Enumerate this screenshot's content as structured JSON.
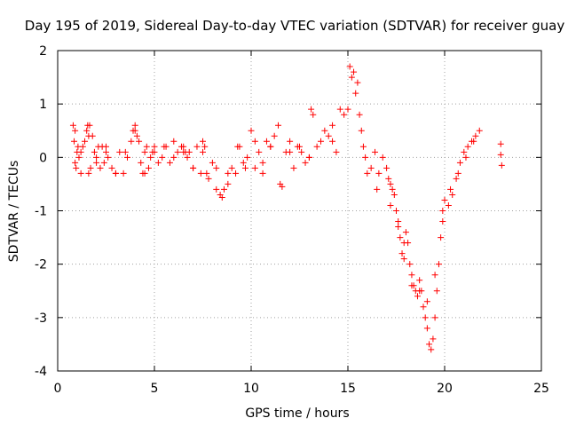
{
  "chart_data": {
    "type": "scatter",
    "title": "Day 195 of 2019, Sidereal Day-to-day VTEC variation (SDTVAR) for receiver guay",
    "xlabel": "GPS time / hours",
    "ylabel": "SDTVAR / TECUs",
    "xlim": [
      0,
      25
    ],
    "ylim": [
      -4,
      2
    ],
    "xticks": [
      "0",
      "5",
      "10",
      "15",
      "20",
      "25"
    ],
    "yticks": [
      "2",
      "1",
      "0",
      "-1",
      "-2",
      "-3",
      "-4"
    ],
    "grid": true,
    "marker": "+",
    "color": "#ff0000",
    "series": [
      {
        "name": "SDTVAR",
        "x": [
          0.8,
          0.85,
          0.9,
          0.95,
          1.0,
          1.05,
          1.1,
          1.2,
          1.3,
          1.4,
          1.5,
          1.55,
          1.6,
          1.65,
          1.7,
          1.8,
          1.9,
          2.0,
          2.1,
          2.2,
          2.3,
          2.4,
          2.5,
          2.6,
          2.8,
          3.0,
          3.2,
          3.4,
          3.6,
          3.8,
          3.9,
          4.0,
          4.1,
          4.2,
          4.3,
          4.4,
          4.5,
          4.6,
          4.7,
          4.8,
          4.9,
          5.0,
          5.2,
          5.4,
          5.6,
          5.8,
          6.0,
          6.2,
          6.4,
          6.5,
          6.6,
          6.7,
          6.8,
          7.0,
          7.2,
          7.4,
          7.5,
          7.6,
          7.7,
          7.8,
          8.0,
          8.2,
          8.4,
          8.5,
          8.6,
          8.8,
          9.0,
          9.2,
          9.4,
          9.6,
          9.8,
          10.0,
          10.2,
          10.4,
          10.6,
          10.8,
          11.0,
          11.2,
          11.4,
          11.6,
          11.8,
          12.0,
          12.2,
          12.4,
          12.6,
          12.8,
          13.0,
          13.1,
          13.2,
          13.4,
          13.6,
          13.8,
          14.0,
          14.2,
          14.4,
          14.6,
          14.8,
          15.0,
          15.1,
          15.2,
          15.3,
          15.4,
          15.5,
          15.6,
          15.7,
          15.8,
          15.9,
          16.0,
          16.2,
          16.4,
          16.6,
          16.8,
          17.0,
          17.1,
          17.2,
          17.3,
          17.4,
          17.5,
          17.6,
          17.7,
          17.8,
          17.9,
          18.0,
          18.1,
          18.2,
          18.3,
          18.4,
          18.5,
          18.6,
          18.7,
          18.8,
          18.9,
          19.0,
          19.1,
          19.2,
          19.3,
          19.4,
          19.5,
          19.6,
          19.7,
          19.8,
          19.9,
          20.0,
          20.2,
          20.4,
          20.6,
          20.8,
          21.0,
          21.2,
          21.4,
          21.6,
          21.8,
          22.9,
          22.9,
          22.95,
          0.9,
          1.2,
          1.6,
          2.0,
          2.5,
          3.0,
          3.5,
          4.0,
          4.5,
          5.0,
          5.5,
          6.0,
          6.5,
          7.0,
          7.5,
          8.2,
          8.8,
          9.3,
          9.7,
          10.2,
          10.6,
          11.0,
          11.5,
          12.0,
          12.5,
          13.0,
          14.2,
          16.5,
          17.2,
          17.6,
          17.9,
          18.3,
          18.7,
          19.1,
          19.5,
          19.9,
          20.3,
          20.7,
          21.1,
          21.5
        ],
        "y": [
          0.6,
          0.3,
          -0.1,
          -0.2,
          0.1,
          0.2,
          0.0,
          0.1,
          0.2,
          0.3,
          0.5,
          0.6,
          -0.3,
          0.6,
          -0.2,
          0.4,
          0.1,
          -0.1,
          0.2,
          -0.2,
          0.2,
          -0.1,
          0.1,
          0.0,
          -0.2,
          -0.3,
          0.1,
          -0.3,
          0.0,
          0.3,
          0.5,
          0.6,
          0.4,
          0.3,
          -0.1,
          -0.3,
          0.1,
          0.2,
          -0.2,
          0.0,
          0.1,
          0.2,
          -0.1,
          0.0,
          0.2,
          -0.1,
          0.3,
          0.1,
          0.2,
          0.2,
          0.1,
          0.0,
          0.1,
          -0.2,
          0.2,
          -0.3,
          0.1,
          0.2,
          -0.3,
          -0.4,
          -0.1,
          -0.2,
          -0.7,
          -0.75,
          -0.6,
          -0.5,
          -0.2,
          -0.3,
          0.2,
          -0.1,
          0.0,
          0.5,
          -0.2,
          0.1,
          -0.3,
          0.3,
          0.2,
          0.4,
          0.6,
          -0.55,
          0.1,
          0.3,
          -0.2,
          0.2,
          0.1,
          -0.1,
          0.0,
          0.9,
          0.8,
          0.2,
          0.3,
          0.5,
          0.4,
          0.6,
          0.1,
          0.9,
          0.8,
          0.9,
          1.7,
          1.5,
          1.6,
          1.2,
          1.4,
          0.8,
          0.5,
          0.2,
          0.0,
          -0.3,
          -0.2,
          0.1,
          -0.3,
          0.0,
          -0.2,
          -0.4,
          -0.5,
          -0.6,
          -0.7,
          -1.0,
          -1.2,
          -1.5,
          -1.8,
          -1.6,
          -1.4,
          -1.6,
          -2.0,
          -2.2,
          -2.4,
          -2.5,
          -2.6,
          -2.3,
          -2.5,
          -2.8,
          -3.0,
          -3.2,
          -3.5,
          -3.6,
          -3.4,
          -3.0,
          -2.5,
          -2.0,
          -1.5,
          -1.0,
          -0.8,
          -0.9,
          -0.7,
          -0.4,
          -0.1,
          0.1,
          0.2,
          0.3,
          0.4,
          0.5,
          0.25,
          0.05,
          -0.15,
          0.5,
          -0.3,
          0.4,
          0.0,
          0.2,
          -0.3,
          0.1,
          0.5,
          -0.3,
          0.1,
          0.2,
          0.0,
          0.1,
          -0.2,
          0.3,
          -0.6,
          -0.3,
          0.2,
          -0.2,
          0.3,
          -0.1,
          0.2,
          -0.5,
          0.1,
          0.2,
          0.0,
          0.3,
          -0.6,
          -0.9,
          -1.3,
          -1.9,
          -2.4,
          -2.5,
          -2.7,
          -2.2,
          -1.2,
          -0.6,
          -0.3,
          0.0,
          0.3
        ]
      }
    ]
  }
}
